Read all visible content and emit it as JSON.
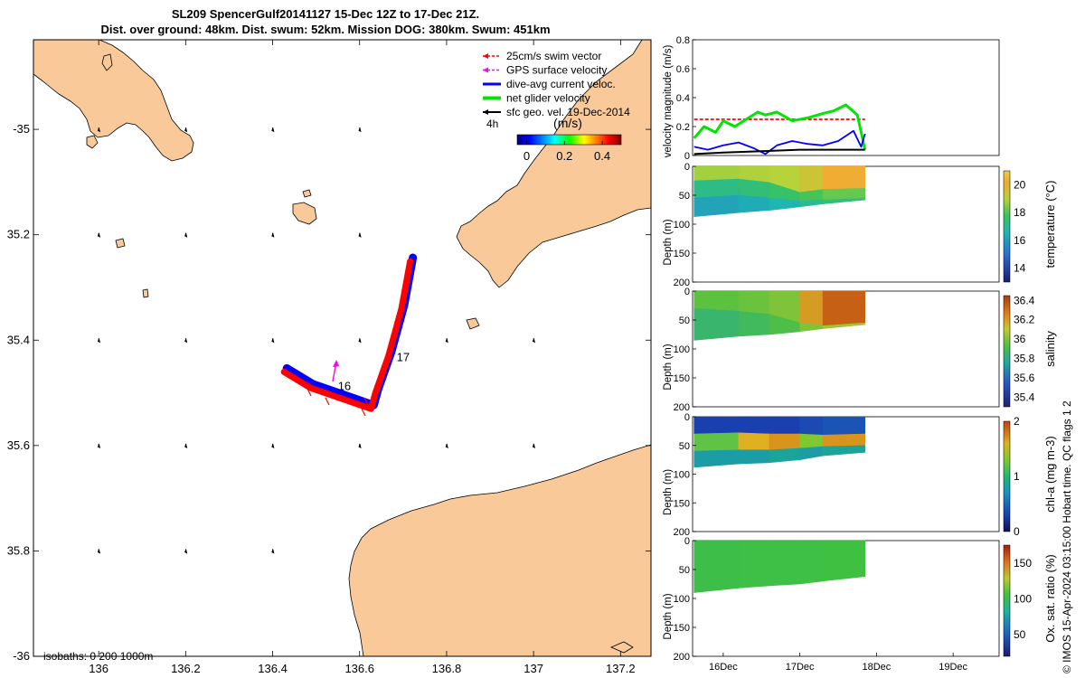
{
  "title_line1": "SL209 SpencerGulf20141127 15-Dec 12Z to 17-Dec 21Z.",
  "title_line2": "Dist. over ground: 48km. Dist. swum: 52km. Mission DOG: 380km. Swum: 451km",
  "credit": "© IMOS 15-Apr-2024 03:15:00 Hobart time. QC flags 1  2",
  "colors": {
    "land": "#f9c99a",
    "track_red": "#ff0000",
    "track_blue": "#0000ff",
    "net": "#00e600",
    "gps": "#ff00ff",
    "sfc": "#000000"
  },
  "map": {
    "xlim": [
      135.85,
      137.27
    ],
    "ylim": [
      -36.0,
      -34.83
    ],
    "xticks": [
      136,
      136.2,
      136.4,
      136.6,
      136.8,
      137,
      137.2
    ],
    "xtick_labels": [
      "136",
      "136.2",
      "136.4",
      "136.6",
      "136.8",
      "137",
      "137.2"
    ],
    "yticks": [
      -35,
      -35.2,
      -35.4,
      -35.6,
      -35.8,
      -36
    ],
    "ytick_labels": [
      "-35",
      "35.2",
      "35.4",
      "35.6",
      "35.8",
      "-36"
    ],
    "legend": [
      {
        "label": "25cm/s swim vector",
        "color": "#ff0000",
        "style": "dashed-arrow"
      },
      {
        "label": "GPS surface velocity",
        "color": "#ff00ff",
        "style": "dashed-arrow"
      },
      {
        "label": "dive-avg current veloc.",
        "color": "#0000ff",
        "style": "line"
      },
      {
        "label": "net glider velocity",
        "color": "#00e600",
        "style": "thick-line"
      },
      {
        "label": "sfc geo. vel. 19-Dec-2014",
        "color": "#000000",
        "style": "arrow"
      }
    ],
    "colorbar_title": "(m/s)",
    "colorbar_side_label": "4h",
    "colorbar_ticks": [
      0,
      0.2,
      0.4
    ],
    "colorbar_tick_labels": [
      "0",
      "0.2",
      "0.4"
    ],
    "colorbar_range": [
      -0.05,
      0.5
    ],
    "isobaths_text": "isobaths: 0   200  1000m",
    "track_labels": [
      {
        "text": "16",
        "lon": 136.55,
        "lat": -35.495
      },
      {
        "text": "17",
        "lon": 136.685,
        "lat": -35.44
      }
    ]
  },
  "chart_data": [
    {
      "type": "line",
      "ylabel": "velocity magnitude (m/s)",
      "ylim": [
        0,
        0.8
      ],
      "yticks": [
        0,
        0.2,
        0.4,
        0.6,
        0.8
      ],
      "xlim": [
        15.6,
        19.6
      ],
      "x_ticks": [
        16,
        17,
        18,
        19
      ],
      "x_tick_labels": [
        "16Dec",
        "17Dec",
        "18Dec",
        "19Dec"
      ],
      "series": [
        {
          "name": "25cm/s swim vector",
          "color": "#ff0000",
          "x": [
            15.62,
            17.85
          ],
          "y": [
            0.25,
            0.25
          ]
        },
        {
          "name": "net glider velocity",
          "color": "#00e600",
          "x": [
            15.62,
            15.75,
            15.9,
            16.0,
            16.15,
            16.3,
            16.45,
            16.55,
            16.7,
            16.9,
            17.1,
            17.3,
            17.45,
            17.6,
            17.75,
            17.85
          ],
          "y": [
            0.12,
            0.2,
            0.16,
            0.24,
            0.2,
            0.25,
            0.3,
            0.28,
            0.3,
            0.24,
            0.26,
            0.29,
            0.31,
            0.35,
            0.28,
            0.04
          ]
        },
        {
          "name": "dive-avg current veloc.",
          "color": "#0000ff",
          "x": [
            15.62,
            15.8,
            16.0,
            16.2,
            16.4,
            16.55,
            16.7,
            16.9,
            17.1,
            17.3,
            17.5,
            17.7,
            17.8,
            17.85
          ],
          "y": [
            0.06,
            0.04,
            0.07,
            0.09,
            0.05,
            0.01,
            0.07,
            0.1,
            0.08,
            0.07,
            0.1,
            0.17,
            0.06,
            0.15
          ]
        },
        {
          "name": "sfc geo. vel. 19-Dec-2014",
          "color": "#000000",
          "x": [
            15.62,
            16.0,
            16.5,
            17.0,
            17.5,
            17.85
          ],
          "y": [
            0.01,
            0.02,
            0.03,
            0.04,
            0.04,
            0.04
          ]
        }
      ]
    },
    {
      "type": "heatmap",
      "ylabel": "Depth (m)",
      "cbar_label": "temperature (°C)",
      "clim": [
        13,
        21
      ],
      "cbar_ticks": [
        14,
        16,
        18,
        20
      ],
      "x_start": 15.62,
      "x_end": 17.85,
      "bottom_depth": [
        87,
        80,
        73,
        58
      ],
      "layers": [
        {
          "x": [
            15.62,
            16.2,
            16.6,
            17.0,
            17.3,
            17.85
          ],
          "top": [
            0,
            0,
            0,
            0,
            0,
            0
          ],
          "bottom": [
            25,
            22,
            28,
            45,
            40,
            38
          ],
          "value": [
            18.8,
            18.9,
            19.0,
            19.4,
            20.3,
            20.5
          ]
        },
        {
          "x": [
            15.62,
            16.2,
            16.6,
            17.0,
            17.3,
            17.85
          ],
          "top": [
            25,
            22,
            28,
            45,
            40,
            38
          ],
          "bottom": [
            55,
            50,
            55,
            60,
            58,
            55
          ],
          "value": [
            17.2,
            17.4,
            17.6,
            17.9,
            18.2,
            18.3
          ]
        },
        {
          "x": [
            15.62,
            16.2,
            16.6,
            17.0,
            17.3,
            17.85
          ],
          "top": [
            55,
            50,
            55,
            60,
            58,
            55
          ],
          "bottom": [
            87,
            80,
            76,
            70,
            65,
            58
          ],
          "value": [
            16.2,
            16.4,
            16.6,
            17.0,
            17.4,
            17.6
          ]
        }
      ]
    },
    {
      "type": "heatmap",
      "ylabel": "Depth (m)",
      "cbar_label": "salinity",
      "clim": [
        35.3,
        36.45
      ],
      "cbar_ticks": [
        35.4,
        35.6,
        35.8,
        36,
        36.2,
        36.4
      ],
      "x_start": 15.62,
      "x_end": 17.85,
      "bottom_depth": [
        85,
        78,
        72,
        58
      ],
      "layers": [
        {
          "x": [
            15.62,
            16.2,
            16.6,
            17.0,
            17.3,
            17.85
          ],
          "top": [
            0,
            0,
            0,
            0,
            0,
            0
          ],
          "bottom": [
            30,
            35,
            40,
            55,
            60,
            55
          ],
          "value": [
            35.95,
            35.97,
            36.0,
            36.2,
            36.35,
            36.3
          ]
        },
        {
          "x": [
            15.62,
            16.2,
            16.6,
            17.0,
            17.3,
            17.85
          ],
          "top": [
            30,
            35,
            40,
            55,
            60,
            55
          ],
          "bottom": [
            85,
            78,
            75,
            70,
            65,
            58
          ],
          "value": [
            35.85,
            35.88,
            35.92,
            36.0,
            36.05,
            36.05
          ]
        }
      ]
    },
    {
      "type": "heatmap",
      "ylabel": "Depth (m)",
      "cbar_label": "chl-a (mg m-3)",
      "clim": [
        0,
        2
      ],
      "cbar_ticks": [
        0,
        1,
        2
      ],
      "x_start": 15.62,
      "x_end": 17.85,
      "bottom_depth": [
        88,
        82,
        76,
        62
      ],
      "layers": [
        {
          "x": [
            15.62,
            16.2,
            16.6,
            17.0,
            17.3,
            17.85
          ],
          "top": [
            0,
            0,
            0,
            0,
            0,
            0
          ],
          "bottom": [
            30,
            28,
            30,
            30,
            32,
            30
          ],
          "value": [
            0.3,
            0.3,
            0.3,
            0.35,
            0.4,
            0.4
          ]
        },
        {
          "x": [
            15.62,
            16.2,
            16.6,
            17.0,
            17.3,
            17.85
          ],
          "top": [
            30,
            28,
            30,
            30,
            32,
            30
          ],
          "bottom": [
            60,
            58,
            58,
            55,
            52,
            50
          ],
          "value": [
            1.2,
            1.6,
            1.7,
            1.3,
            1.7,
            1.2
          ]
        },
        {
          "x": [
            15.62,
            16.2,
            16.6,
            17.0,
            17.3,
            17.85
          ],
          "top": [
            60,
            58,
            58,
            55,
            52,
            50
          ],
          "bottom": [
            88,
            82,
            80,
            75,
            68,
            62
          ],
          "value": [
            0.8,
            0.8,
            0.85,
            0.8,
            0.85,
            0.8
          ]
        }
      ]
    },
    {
      "type": "heatmap",
      "ylabel": "Depth (m)",
      "cbar_label": "Ox. sat. ratio (%)",
      "clim": [
        20,
        175
      ],
      "cbar_ticks": [
        50,
        100,
        150
      ],
      "x_start": 15.62,
      "x_end": 17.85,
      "bottom_depth": [
        90,
        82,
        75,
        62
      ],
      "layers": [
        {
          "x": [
            15.62,
            16.2,
            16.6,
            17.0,
            17.3,
            17.85
          ],
          "top": [
            0,
            0,
            0,
            0,
            0,
            0
          ],
          "bottom": [
            90,
            82,
            78,
            75,
            70,
            62
          ],
          "value": [
            103,
            104,
            104,
            104,
            105,
            104
          ]
        }
      ]
    }
  ]
}
